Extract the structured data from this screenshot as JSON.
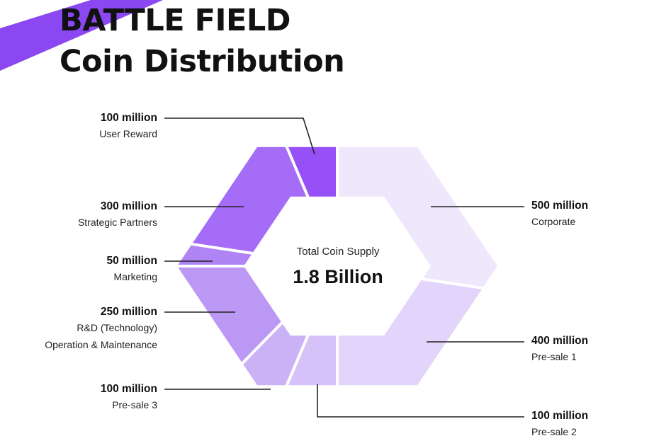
{
  "title_line_1": "BATTLE FIELD",
  "title_line_2": "Coin Distribution",
  "center": {
    "label": "Total Coin Supply",
    "value": "1.8 Billion"
  },
  "colors": {
    "accent_stripe": "#8a47f2",
    "leader_line": "#222222",
    "divider": "#ffffff"
  },
  "chart_data": {
    "type": "pie",
    "variant": "hexagonal donut",
    "total": 1800000000,
    "slices": [
      {
        "id": "corporate",
        "value_label": "500 million",
        "name": "Corporate",
        "value": 500,
        "color": "#efe8fc",
        "label_side": "right"
      },
      {
        "id": "presale1",
        "value_label": "400 million",
        "name": "Pre-sale 1",
        "value": 400,
        "color": "#e2d4fa",
        "label_side": "right"
      },
      {
        "id": "presale2",
        "value_label": "100 million",
        "name": "Pre-sale 2",
        "value": 100,
        "color": "#d6c2f8",
        "label_side": "right"
      },
      {
        "id": "presale3",
        "value_label": "100 million",
        "name": "Pre-sale 3",
        "value": 100,
        "color": "#cbb2f6",
        "label_side": "left"
      },
      {
        "id": "rnd",
        "value_label": "250 million",
        "name": "R&D (Technology)\nOperation & Maintenance",
        "value": 250,
        "color": "#bc98f5",
        "label_side": "left"
      },
      {
        "id": "marketing",
        "value_label": "50 million",
        "name": "Marketing",
        "value": 50,
        "color": "#b084f5",
        "label_side": "left"
      },
      {
        "id": "partners",
        "value_label": "300 million",
        "name": "Strategic Partners",
        "value": 300,
        "color": "#a56df7",
        "label_side": "left"
      },
      {
        "id": "reward",
        "value_label": "100 million",
        "name": "User Reward",
        "value": 100,
        "color": "#9650f6",
        "label_side": "left"
      }
    ]
  }
}
